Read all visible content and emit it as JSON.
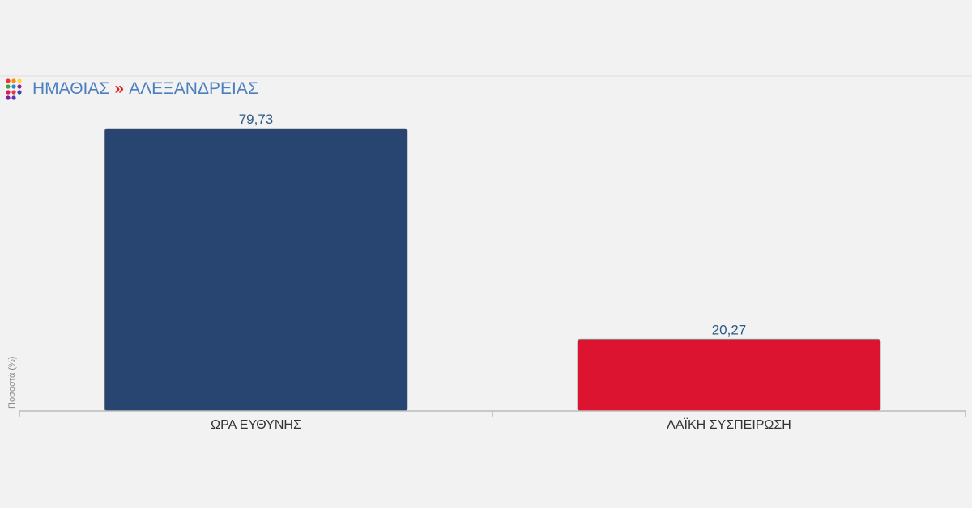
{
  "breadcrumb": {
    "region": "ΗΜΑΘΙΑΣ",
    "separator": "»",
    "municipality": "ΑΛΕΞΑΝΔΡΕΙΑΣ"
  },
  "chart_data": {
    "type": "bar",
    "ylabel": "Ποσοστά (%)",
    "ylim": [
      0,
      80
    ],
    "categories": [
      "ΩΡΑ ΕΥΘΥΝΗΣ",
      "ΛΑΪΚΗ ΣΥΣΠΕΙΡΩΣΗ"
    ],
    "values": [
      79.73,
      20.27
    ],
    "value_labels": [
      "79,73",
      "20,27"
    ],
    "colors": [
      "#284571",
      "#dc1430"
    ],
    "grid": false,
    "legend": "none"
  },
  "icon": "colored-dots-icon"
}
